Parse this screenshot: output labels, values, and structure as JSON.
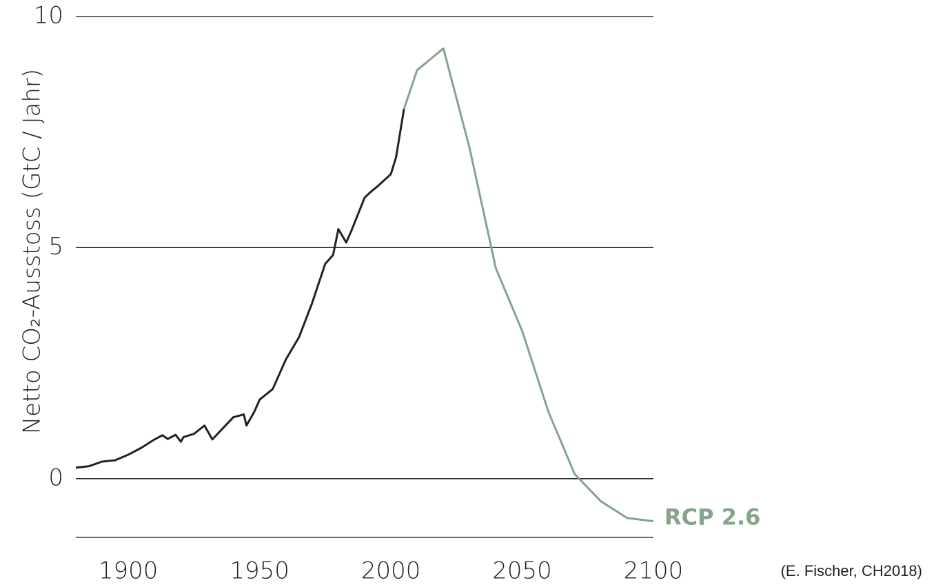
{
  "chart_data": {
    "type": "line",
    "y_label": "Netto CO₂-Ausstoss (GtC / Jahr)",
    "source": "(E. Fischer, CH2018)",
    "xlim": [
      1880,
      2100
    ],
    "xticks": [
      1900,
      1950,
      2000,
      2050,
      2100
    ],
    "ylim": [
      -1.27,
      10
    ],
    "yticks": [
      0,
      5,
      10
    ],
    "grid": true,
    "series": [
      {
        "color": "#222222",
        "x": [
          1880,
          1885,
          1890,
          1895,
          1900,
          1905,
          1910,
          1913,
          1915,
          1918,
          1920,
          1921,
          1925,
          1929,
          1932,
          1935,
          1940,
          1944,
          1945,
          1948,
          1950,
          1955,
          1960,
          1965,
          1970,
          1975,
          1978,
          1980,
          1983,
          1985,
          1990,
          1992,
          1995,
          2000,
          2002,
          2005
        ],
        "values": [
          0.24,
          0.27,
          0.37,
          0.4,
          0.52,
          0.67,
          0.85,
          0.94,
          0.86,
          0.95,
          0.8,
          0.9,
          0.97,
          1.15,
          0.85,
          1.03,
          1.33,
          1.39,
          1.15,
          1.45,
          1.71,
          1.94,
          2.58,
          3.06,
          3.8,
          4.65,
          4.84,
          5.4,
          5.11,
          5.37,
          6.08,
          6.19,
          6.33,
          6.59,
          6.96,
          8.0
        ]
      },
      {
        "name": "RCP 2.6",
        "color": "#85a48b",
        "x": [
          2005,
          2010,
          2020,
          2030,
          2040,
          2050,
          2060,
          2070,
          2080,
          2090,
          2100
        ],
        "values": [
          8.0,
          8.84,
          9.31,
          7.15,
          4.55,
          3.2,
          1.45,
          0.1,
          -0.49,
          -0.85,
          -0.92
        ]
      }
    ]
  }
}
